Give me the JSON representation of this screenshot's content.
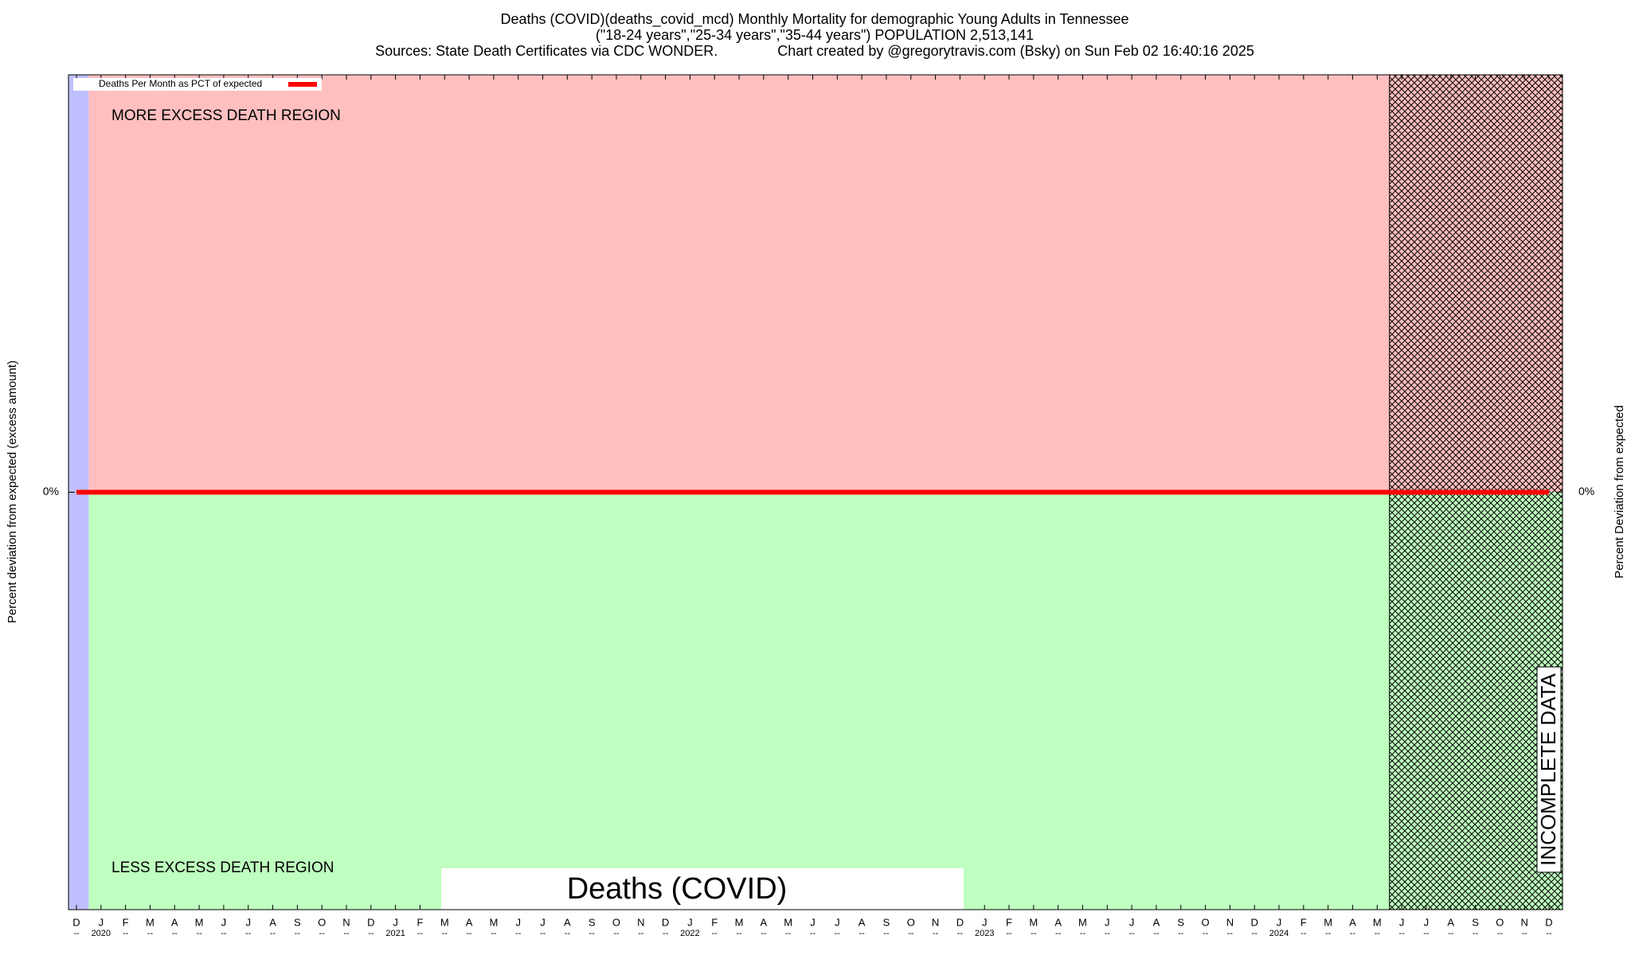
{
  "chart_data": {
    "type": "line",
    "title": "Deaths (COVID)(deaths_covid_mcd) Monthly Mortality for demographic Young Adults in Tennessee",
    "subtitle": [
      "(\"18-24 years\",\"25-34 years\",\"35-44 years\") POPULATION 2,513,141",
      "Sources: State Death Certificates via CDC WONDER.               Chart created by @gregorytravis.com (Bsky) on Sun Feb 02 16:40:16 2025"
    ],
    "y_label": "Percent deviation from expected (excess amount)",
    "y2_label": "Percent Deviation from expected",
    "annotations": [
      "MORE EXCESS DEATH REGION",
      "LESS EXCESS DEATH REGION",
      "Deaths (COVID)",
      "INCOMPLETE DATA"
    ],
    "categories": [
      "D",
      "J",
      "F",
      "M",
      "A",
      "M",
      "J",
      "J",
      "A",
      "S",
      "O",
      "N",
      "D",
      "J",
      "F",
      "M",
      "A",
      "M",
      "J",
      "J",
      "A",
      "S",
      "O",
      "N",
      "D",
      "J",
      "F",
      "M",
      "A",
      "M",
      "J",
      "J",
      "A",
      "S",
      "O",
      "N",
      "D",
      "J",
      "F",
      "M",
      "A",
      "M",
      "J",
      "J",
      "A",
      "S",
      "O",
      "N",
      "D",
      "J",
      "F",
      "M",
      "A",
      "M",
      "J",
      "J",
      "A",
      "S",
      "O",
      "N",
      "D"
    ],
    "category_sublabels": [
      "--",
      "2020",
      "--",
      "--",
      "--",
      "--",
      "--",
      "--",
      "--",
      "--",
      "--",
      "--",
      "--",
      "2021",
      "--",
      "--",
      "--",
      "--",
      "--",
      "--",
      "--",
      "--",
      "--",
      "--",
      "--",
      "2022",
      "--",
      "--",
      "--",
      "--",
      "--",
      "--",
      "--",
      "--",
      "--",
      "--",
      "--",
      "2023",
      "--",
      "--",
      "--",
      "--",
      "--",
      "--",
      "--",
      "--",
      "--",
      "--",
      "--",
      "2024",
      "--",
      "--",
      "--",
      "--",
      "--",
      "--",
      "--",
      "--",
      "--",
      "--",
      "--"
    ],
    "series": [
      {
        "name": "Deaths Per Month as PCT of expected",
        "color": "#ff0000",
        "values": [
          0,
          0,
          0,
          0,
          0,
          0,
          0,
          0,
          0,
          0,
          0,
          0,
          0,
          0,
          0,
          0,
          0,
          0,
          0,
          0,
          0,
          0,
          0,
          0,
          0,
          0,
          0,
          0,
          0,
          0,
          0,
          0,
          0,
          0,
          0,
          0,
          0,
          0,
          0,
          0,
          0,
          0,
          0,
          0,
          0,
          0,
          0,
          0,
          0,
          0,
          0,
          0,
          0,
          0,
          0,
          0,
          0,
          0,
          0,
          0,
          0
        ]
      }
    ],
    "ylim": [
      -100,
      100
    ],
    "yticks": [
      {
        "value": 0,
        "label": "0%"
      }
    ],
    "y2lim": [
      -100,
      100
    ],
    "y2ticks": [
      {
        "value": 0,
        "label": "0%"
      }
    ],
    "legend": "top-left"
  }
}
